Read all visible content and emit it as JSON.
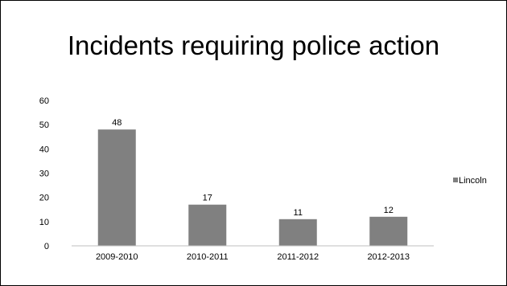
{
  "chart_data": {
    "type": "bar",
    "title": "Incidents requiring police action",
    "categories": [
      "2009-2010",
      "2010-2011",
      "2011-2012",
      "2012-2013"
    ],
    "series": [
      {
        "name": "Lincoln",
        "values": [
          48,
          17,
          11,
          12
        ],
        "color": "#808080"
      }
    ],
    "data_labels": [
      "48",
      "17",
      "11",
      "12"
    ],
    "ylim": [
      0,
      60
    ],
    "yticks": [
      "0",
      "10",
      "20",
      "30",
      "40",
      "50",
      "60"
    ],
    "grid": false,
    "legend_position": "right"
  }
}
